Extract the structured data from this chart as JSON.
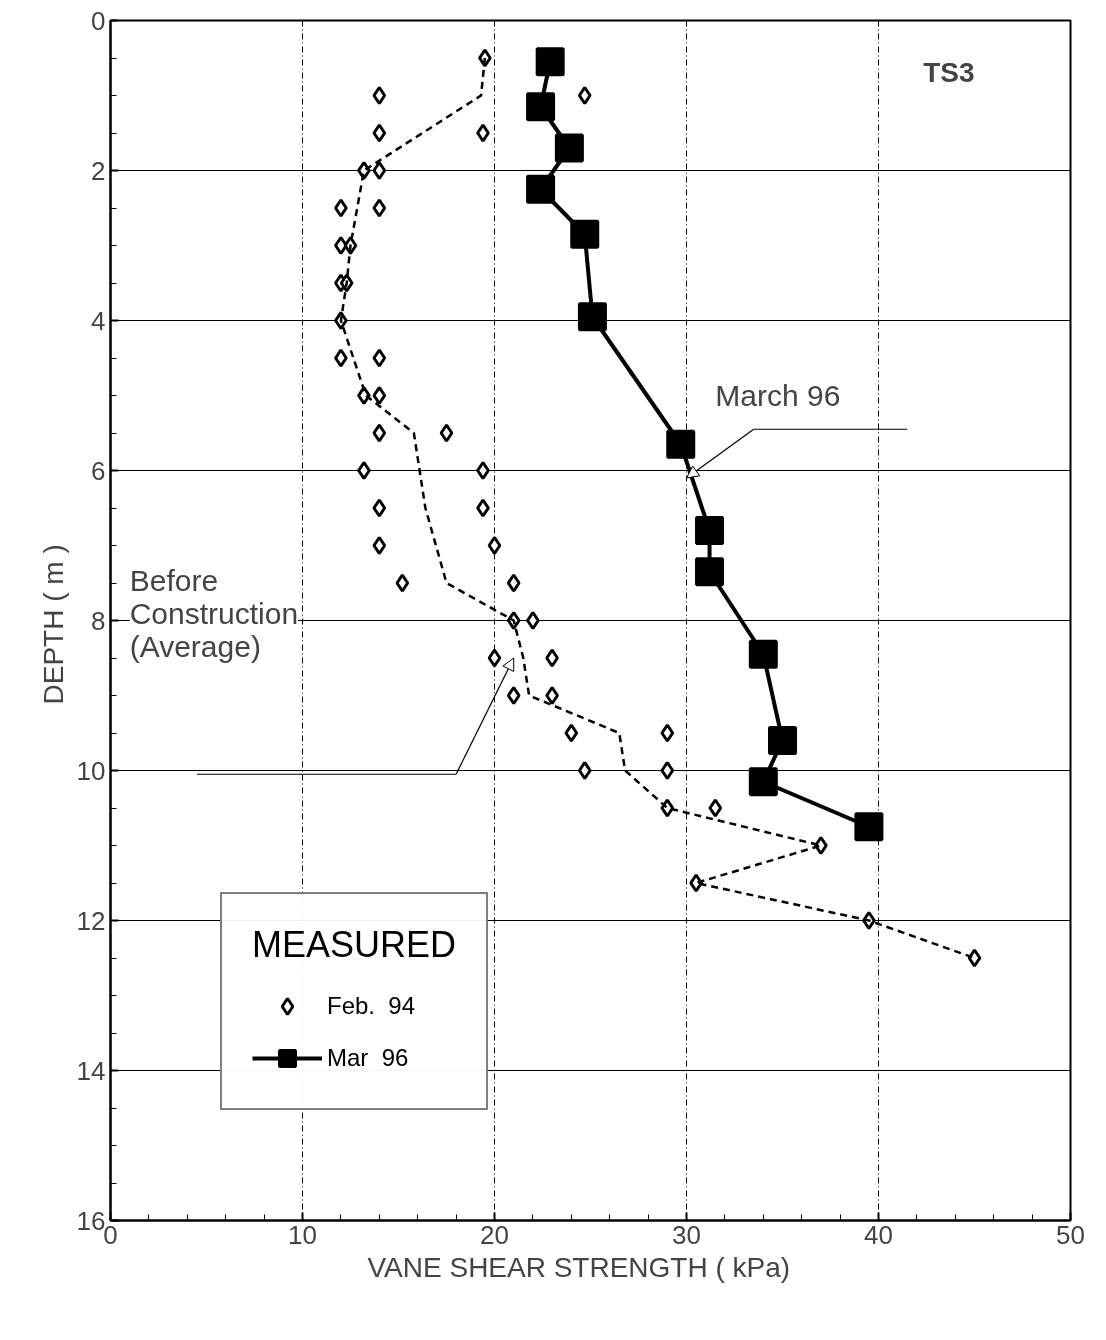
{
  "chart_data": {
    "type": "scatter",
    "title": "TS3",
    "xlabel": "VANE  SHEAR  STRENGTH  ( kPa)",
    "ylabel": "DEPTH  ( m )",
    "legend_title": "MEASURED",
    "xlim": [
      0,
      50
    ],
    "xticks": [
      0,
      10,
      20,
      30,
      40,
      50
    ],
    "ylim": [
      16,
      0
    ],
    "yticks": [
      0,
      2,
      4,
      6,
      8,
      10,
      12,
      14,
      16
    ],
    "grid": true,
    "legend": "bottom left",
    "series": [
      {
        "name": "Feb.  94",
        "marker": "diamond",
        "color": "#000000",
        "x": [
          19.5,
          14,
          24.7,
          14,
          19.4,
          13.2,
          14,
          12,
          14,
          12,
          12.5,
          12,
          12.3,
          12,
          12,
          14,
          13.2,
          14,
          14,
          17.5,
          13.2,
          19.4,
          14,
          19.4,
          14,
          20,
          15.2,
          21,
          21,
          22,
          20,
          23,
          21,
          23,
          24,
          29,
          24.7,
          29,
          29,
          31.5,
          37,
          30.5,
          39.5,
          45
        ],
        "values": [
          0.5,
          1,
          1,
          1.5,
          1.5,
          2,
          2,
          2.5,
          2.5,
          3,
          3,
          3.5,
          3.5,
          4,
          4.5,
          4.5,
          5,
          5,
          5.5,
          5.5,
          6,
          6,
          6.5,
          6.5,
          7,
          7,
          7.5,
          7.5,
          8,
          8,
          8.5,
          8.5,
          9,
          9,
          9.5,
          9.5,
          10,
          10,
          10.5,
          10.5,
          11,
          11.5,
          12,
          12.5
        ]
      },
      {
        "name": "Mar  96",
        "type": "line",
        "marker": "square",
        "line_style": "solid",
        "color": "#000000",
        "x": [
          22.9,
          22.4,
          23.9,
          22.4,
          24.7,
          25.1,
          29.7,
          31.2,
          31.2,
          34,
          35,
          34,
          39.5
        ],
        "values": [
          0.55,
          1.15,
          1.7,
          2.25,
          2.85,
          3.95,
          5.65,
          6.8,
          7.35,
          8.45,
          9.6,
          10.15,
          10.75
        ]
      },
      {
        "type": "line",
        "marker": "none",
        "line_style": "dashed",
        "color": "#000000",
        "x": [
          19.5,
          19.3,
          13.2,
          12.5,
          12.3,
          12,
          13.3,
          15.8,
          16.4,
          17.5,
          21,
          21.5,
          21.8,
          26.5,
          26.8,
          29,
          37,
          30.5,
          39.5,
          45
        ],
        "values": [
          0.5,
          1,
          2,
          3,
          3.5,
          4,
          5,
          5.5,
          6.5,
          7.5,
          8,
          8.5,
          9,
          9.5,
          10,
          10.5,
          11,
          11.5,
          12,
          12.5
        ]
      }
    ],
    "annotations": [
      {
        "text": "March 96",
        "x": 30,
        "y": 6.1
      },
      "Before\nConstruction\n(Average)"
    ]
  }
}
